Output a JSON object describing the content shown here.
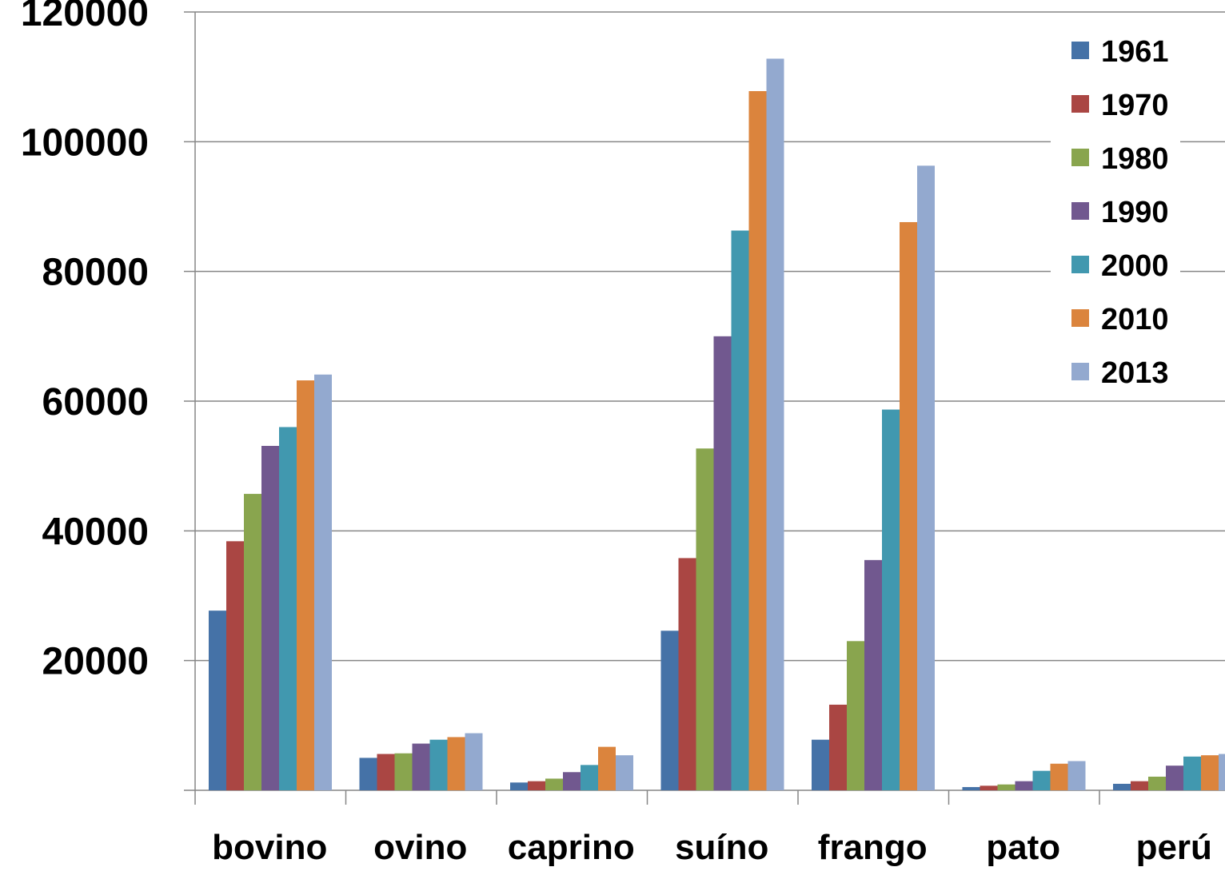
{
  "chart_data": {
    "type": "bar",
    "title": "",
    "xlabel": "",
    "ylabel": "",
    "ylim": [
      0,
      120000
    ],
    "yticks": [
      20000,
      40000,
      60000,
      80000,
      100000,
      120000
    ],
    "ytick_labels": [
      "20000",
      "40000",
      "60000",
      "80000",
      "100000",
      "120000"
    ],
    "grid": true,
    "legend_position": "top-right",
    "categories": [
      "bovino",
      "ovino",
      "caprino",
      "suíno",
      "frango",
      "pato",
      "perú"
    ],
    "series": [
      {
        "name": "1961",
        "color": "#4572A7",
        "values": [
          27700,
          5000,
          1200,
          24600,
          7800,
          500,
          1000
        ]
      },
      {
        "name": "1970",
        "color": "#AA4643",
        "values": [
          38400,
          5600,
          1400,
          35800,
          13200,
          700,
          1400
        ]
      },
      {
        "name": "1980",
        "color": "#89A54E",
        "values": [
          45700,
          5700,
          1800,
          52700,
          23000,
          900,
          2100
        ]
      },
      {
        "name": "1990",
        "color": "#71588F",
        "values": [
          53100,
          7200,
          2800,
          70000,
          35500,
          1400,
          3800
        ]
      },
      {
        "name": "2000",
        "color": "#4198AF",
        "values": [
          56000,
          7800,
          3900,
          86300,
          58700,
          3000,
          5200
        ]
      },
      {
        "name": "2010",
        "color": "#DB843D",
        "values": [
          63200,
          8200,
          6700,
          107800,
          87600,
          4100,
          5400
        ]
      },
      {
        "name": "2013",
        "color": "#93A9CF",
        "values": [
          64100,
          8800,
          5400,
          112800,
          96300,
          4500,
          5600
        ]
      }
    ]
  }
}
